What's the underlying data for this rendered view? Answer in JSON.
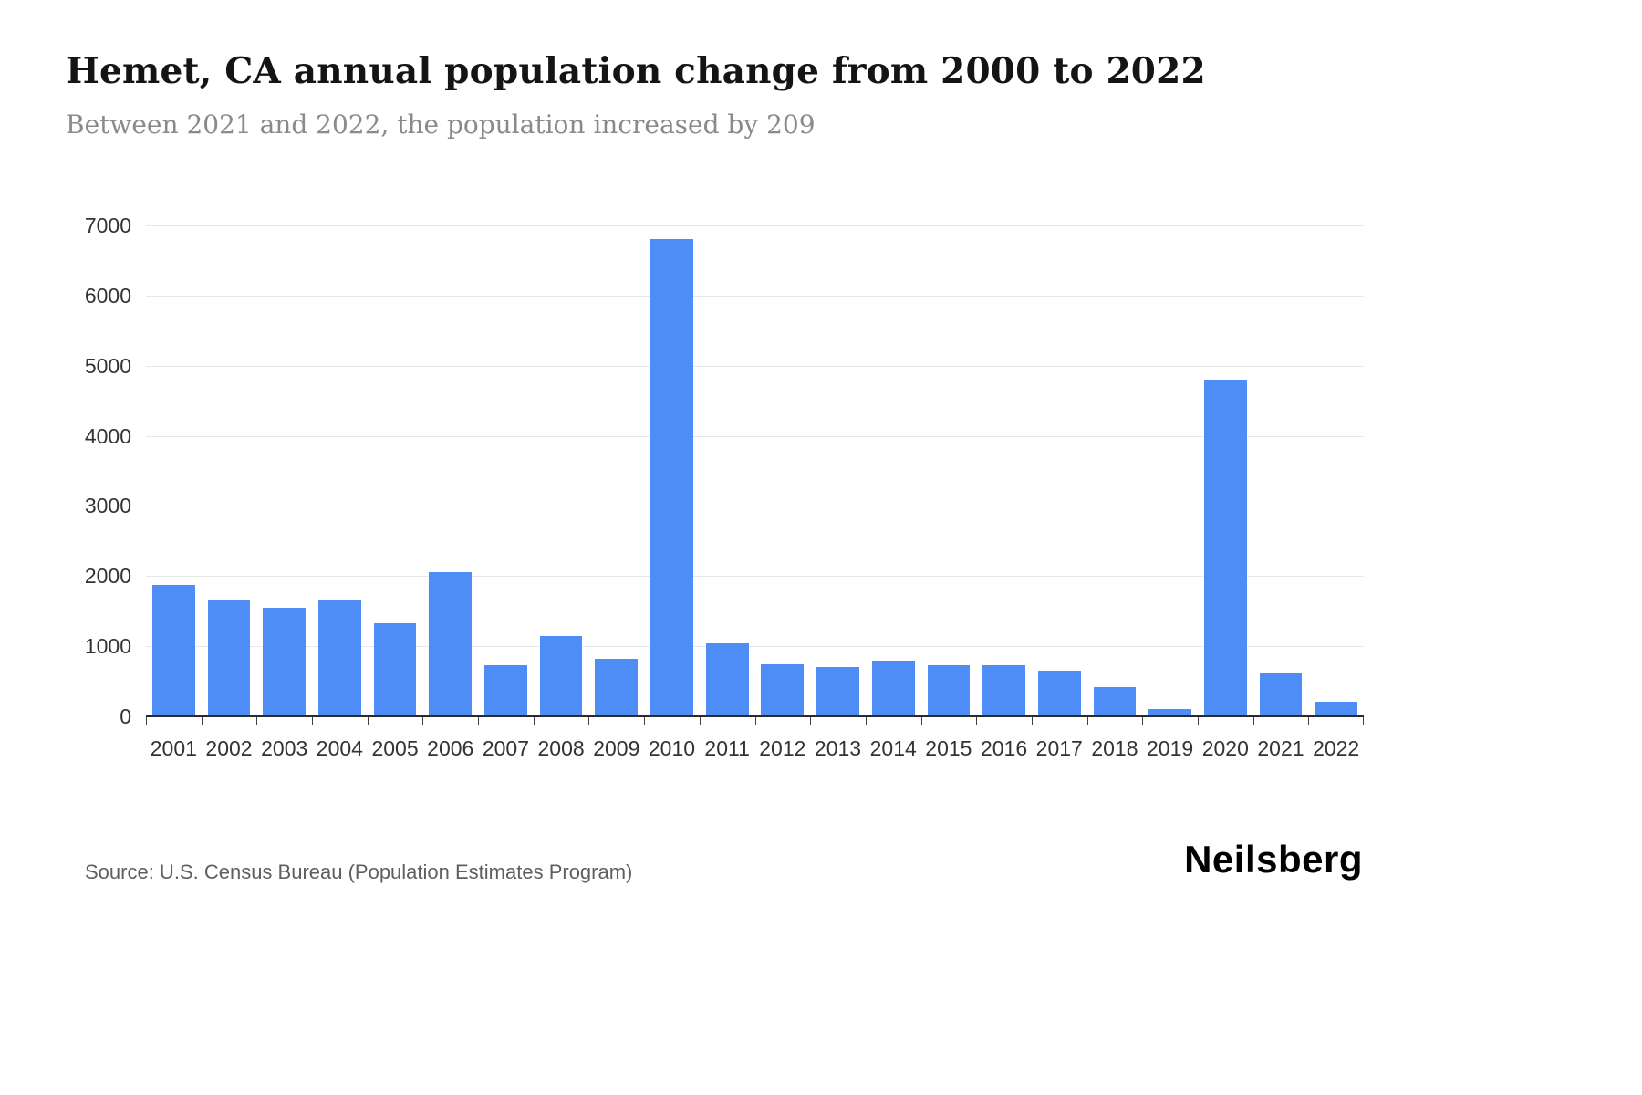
{
  "footer": {
    "source": "Source: U.S. Census Bureau (Population Estimates Program)",
    "brand": "Neilsberg"
  },
  "chart_data": {
    "type": "bar",
    "title": "Hemet, CA annual population change from 2000 to 2022",
    "subtitle": "Between 2021 and 2022, the population increased by 209",
    "categories": [
      "2001",
      "2002",
      "2003",
      "2004",
      "2005",
      "2006",
      "2007",
      "2008",
      "2009",
      "2010",
      "2011",
      "2012",
      "2013",
      "2014",
      "2015",
      "2016",
      "2017",
      "2018",
      "2019",
      "2020",
      "2021",
      "2022"
    ],
    "values": [
      1880,
      1650,
      1550,
      1660,
      1330,
      2050,
      730,
      1150,
      820,
      6800,
      1040,
      740,
      700,
      790,
      730,
      730,
      650,
      420,
      100,
      4800,
      630,
      209
    ],
    "xlabel": "",
    "ylabel": "",
    "ylim": [
      0,
      7000
    ],
    "yticks": [
      0,
      1000,
      2000,
      3000,
      4000,
      5000,
      6000,
      7000
    ],
    "grid": true,
    "legend": "none",
    "bar_color": "#4e8df6"
  }
}
